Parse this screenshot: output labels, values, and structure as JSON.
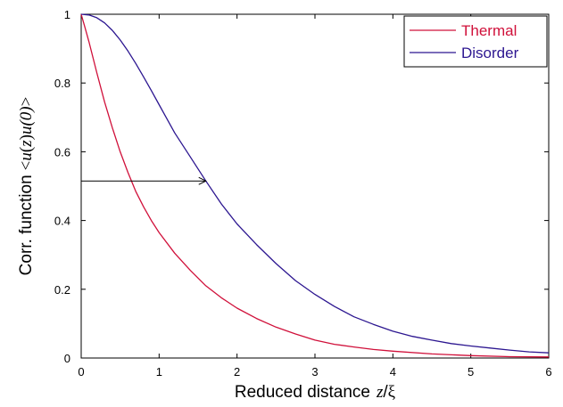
{
  "chart_data": {
    "type": "line",
    "xlabel": {
      "text": "Reduced distance",
      "var_z": "z",
      "slash": "/",
      "xi": "ξ"
    },
    "ylabel": {
      "text": "Corr. function",
      "bra": "<",
      "u1": "u",
      "paren1": "(",
      "z": "z",
      "paren2": ")",
      "u2": "u",
      "zero": "(0)",
      "ket": ">"
    },
    "xlim": [
      0,
      6
    ],
    "ylim": [
      0,
      1
    ],
    "xticks": [
      "0",
      "1",
      "2",
      "3",
      "4",
      "5",
      "6"
    ],
    "yticks": [
      "0",
      "0.2",
      "0.4",
      "0.6",
      "0.8",
      "1"
    ],
    "grid": false,
    "legend_position": "top-right",
    "series": [
      {
        "name": "Thermal",
        "color": "#d0103a",
        "x": [
          0,
          0.05,
          0.1,
          0.2,
          0.3,
          0.4,
          0.5,
          0.6,
          0.7,
          0.8,
          0.9,
          1.0,
          1.2,
          1.4,
          1.6,
          1.8,
          2.0,
          2.25,
          2.5,
          2.75,
          3.0,
          3.25,
          3.5,
          3.75,
          4.0,
          4.5,
          5.0,
          5.5,
          6.0
        ],
        "y": [
          1.0,
          0.96,
          0.92,
          0.83,
          0.745,
          0.67,
          0.6,
          0.54,
          0.485,
          0.44,
          0.4,
          0.365,
          0.305,
          0.255,
          0.21,
          0.175,
          0.145,
          0.115,
          0.09,
          0.07,
          0.052,
          0.04,
          0.032,
          0.025,
          0.02,
          0.012,
          0.007,
          0.004,
          0.003
        ]
      },
      {
        "name": "Disorder",
        "color": "#2c1690",
        "x": [
          0,
          0.1,
          0.2,
          0.3,
          0.4,
          0.5,
          0.6,
          0.7,
          0.8,
          0.9,
          1.0,
          1.2,
          1.4,
          1.6,
          1.8,
          2.0,
          2.25,
          2.5,
          2.75,
          3.0,
          3.25,
          3.5,
          3.75,
          4.0,
          4.25,
          4.5,
          4.75,
          5.0,
          5.25,
          5.5,
          5.75,
          6.0
        ],
        "y": [
          1.0,
          0.998,
          0.99,
          0.975,
          0.953,
          0.925,
          0.893,
          0.857,
          0.818,
          0.778,
          0.737,
          0.655,
          0.585,
          0.515,
          0.448,
          0.39,
          0.33,
          0.275,
          0.225,
          0.185,
          0.15,
          0.12,
          0.098,
          0.078,
          0.063,
          0.052,
          0.042,
          0.035,
          0.029,
          0.023,
          0.018,
          0.015
        ]
      }
    ],
    "annotation": {
      "type": "arrow",
      "x_start": 0.0,
      "x_end": 1.6,
      "y": 0.515
    }
  }
}
